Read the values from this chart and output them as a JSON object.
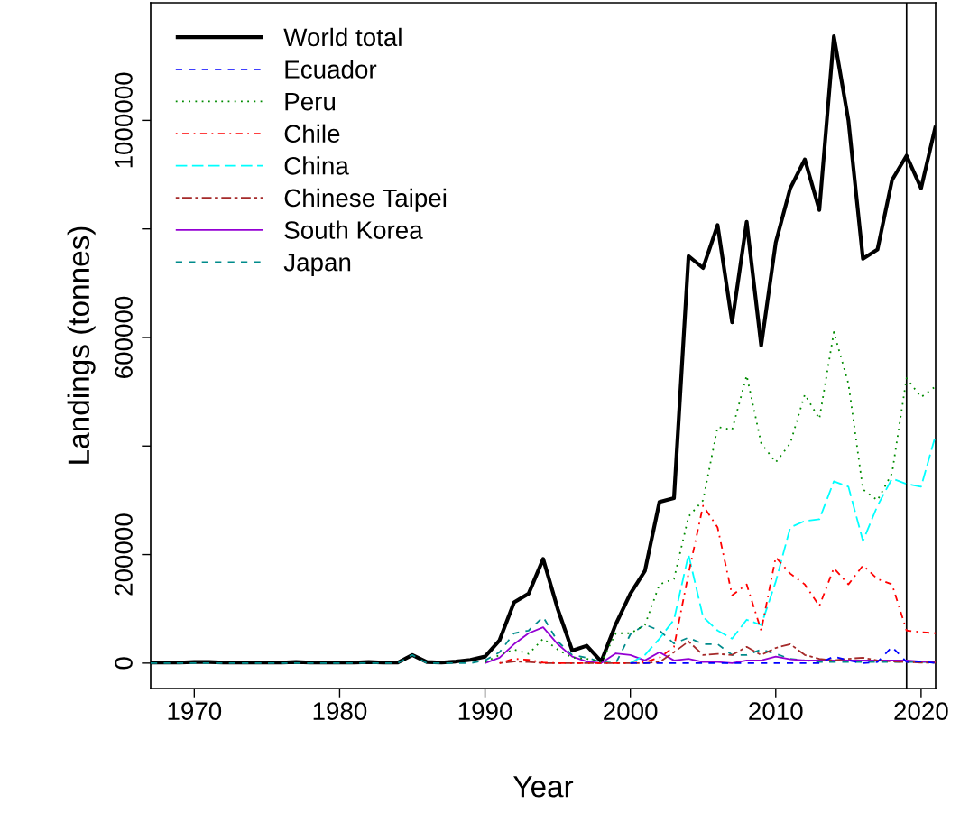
{
  "chart_data": {
    "type": "line",
    "xlabel": "Year",
    "ylabel": "Landings (tonnes)",
    "x": [
      1967,
      1968,
      1969,
      1970,
      1971,
      1972,
      1973,
      1974,
      1975,
      1976,
      1977,
      1978,
      1979,
      1980,
      1981,
      1982,
      1983,
      1984,
      1985,
      1986,
      1987,
      1988,
      1989,
      1990,
      1991,
      1992,
      1993,
      1994,
      1995,
      1996,
      1997,
      1998,
      1999,
      2000,
      2001,
      2002,
      2003,
      2004,
      2005,
      2006,
      2007,
      2008,
      2009,
      2010,
      2011,
      2012,
      2013,
      2014,
      2015,
      2016,
      2017,
      2018,
      2019,
      2020,
      2021
    ],
    "xlim": [
      1967,
      2021
    ],
    "xticks": [
      1970,
      1980,
      1990,
      2000,
      2010,
      2020
    ],
    "ylim": [
      -46800,
      1216800
    ],
    "yticks": [
      0,
      200000,
      {
        "value": 400000,
        "label": null
      },
      600000,
      {
        "value": 800000,
        "label": null
      },
      1000000
    ],
    "grid": false,
    "legend": "top left",
    "marker": "none",
    "ref_lines": [
      {
        "axis": "x",
        "value": 2019,
        "color": "#000000",
        "line_style": "solid"
      }
    ],
    "series": [
      {
        "name": "World total",
        "color": "#000000",
        "line_style": "solid",
        "values": [
          1000,
          1000,
          1000,
          2000,
          2000,
          1000,
          1000,
          1000,
          1000,
          1000,
          2000,
          1000,
          1000,
          1000,
          1000,
          2000,
          1000,
          1000,
          15000,
          2000,
          1000,
          3000,
          6000,
          12000,
          42000,
          112000,
          128000,
          192000,
          100000,
          23000,
          32000,
          3000,
          72000,
          128000,
          170000,
          297000,
          304000,
          750000,
          728000,
          807000,
          628000,
          813000,
          585000,
          775000,
          875000,
          928000,
          835000,
          1155000,
          1000000,
          745000,
          762000,
          890000,
          935000,
          875000,
          990000
        ]
      },
      {
        "name": "Ecuador",
        "color": "#0000ff",
        "line_style": "dashed",
        "values": [
          null,
          null,
          null,
          null,
          null,
          null,
          null,
          null,
          null,
          null,
          null,
          null,
          null,
          null,
          null,
          null,
          null,
          null,
          null,
          null,
          null,
          null,
          null,
          null,
          null,
          null,
          null,
          null,
          null,
          null,
          null,
          null,
          null,
          0,
          0,
          0,
          0,
          0,
          0,
          0,
          0,
          0,
          0,
          0,
          0,
          0,
          0,
          12000,
          5000,
          0,
          2000,
          30000,
          2000,
          3000,
          0
        ]
      },
      {
        "name": "Peru",
        "color": "#008b00",
        "line_style": "dotted",
        "values": [
          null,
          null,
          null,
          null,
          null,
          null,
          null,
          null,
          null,
          null,
          null,
          null,
          null,
          null,
          null,
          null,
          null,
          null,
          null,
          null,
          null,
          null,
          null,
          2000,
          15000,
          25000,
          17000,
          45000,
          25000,
          10000,
          8000,
          2000,
          55000,
          55000,
          70000,
          145000,
          155000,
          270000,
          300000,
          435000,
          430000,
          530000,
          405000,
          370000,
          405000,
          495000,
          450000,
          610000,
          515000,
          320000,
          300000,
          350000,
          525000,
          490000,
          510000
        ]
      },
      {
        "name": "Chile",
        "color": "#ff0000",
        "line_style": "dashdot",
        "values": [
          null,
          null,
          null,
          null,
          null,
          null,
          null,
          null,
          null,
          null,
          null,
          null,
          null,
          null,
          null,
          null,
          null,
          null,
          null,
          null,
          null,
          null,
          null,
          null,
          0,
          8000,
          6000,
          1000,
          0,
          0,
          0,
          0,
          0,
          0,
          2000,
          10000,
          30000,
          165000,
          290000,
          250000,
          125000,
          145000,
          60000,
          195000,
          165000,
          145000,
          105000,
          175000,
          145000,
          180000,
          155000,
          145000,
          60000,
          57000,
          55000
        ]
      },
      {
        "name": "China",
        "color": "#00ffff",
        "line_style": "longdash",
        "values": [
          null,
          null,
          null,
          null,
          null,
          null,
          null,
          null,
          null,
          null,
          null,
          null,
          null,
          null,
          null,
          null,
          null,
          null,
          null,
          null,
          null,
          null,
          null,
          null,
          null,
          null,
          null,
          null,
          null,
          null,
          null,
          null,
          null,
          0,
          15000,
          45000,
          80000,
          200000,
          85000,
          60000,
          45000,
          80000,
          70000,
          150000,
          250000,
          262000,
          265000,
          335000,
          325000,
          225000,
          290000,
          340000,
          330000,
          325000,
          420000
        ]
      },
      {
        "name": "Chinese Taipei",
        "color": "#a52a2a",
        "line_style": "twodash",
        "values": [
          null,
          null,
          null,
          null,
          null,
          null,
          null,
          null,
          null,
          null,
          null,
          null,
          null,
          null,
          null,
          null,
          null,
          null,
          null,
          null,
          null,
          null,
          null,
          null,
          0,
          3000,
          2000,
          0,
          0,
          0,
          0,
          0,
          0,
          0,
          0,
          2000,
          20000,
          40000,
          15000,
          17000,
          15000,
          30000,
          15000,
          28000,
          35000,
          15000,
          8000,
          5000,
          8000,
          10000,
          5000,
          3000,
          2000,
          1000,
          1000
        ]
      },
      {
        "name": "South Korea",
        "color": "#9400d3",
        "line_style": "solid",
        "values": [
          null,
          null,
          null,
          null,
          null,
          null,
          null,
          null,
          null,
          null,
          null,
          null,
          null,
          null,
          null,
          null,
          null,
          null,
          null,
          null,
          null,
          null,
          null,
          0,
          10000,
          35000,
          55000,
          66000,
          35000,
          12000,
          3000,
          0,
          18000,
          15000,
          5000,
          20000,
          5000,
          8000,
          2000,
          2000,
          0,
          5000,
          5000,
          12000,
          7000,
          5000,
          5000,
          5000,
          5000,
          5000,
          5000,
          5000,
          5000,
          3000,
          2000
        ]
      },
      {
        "name": "Japan",
        "color": "#008b8b",
        "line_style": "dashed",
        "values": [
          0,
          0,
          0,
          0,
          0,
          0,
          0,
          0,
          0,
          0,
          0,
          0,
          0,
          0,
          0,
          0,
          0,
          0,
          15000,
          0,
          0,
          0,
          0,
          5000,
          20000,
          55000,
          60000,
          85000,
          40000,
          15000,
          10000,
          2000,
          0,
          53000,
          71000,
          60000,
          36000,
          47000,
          35000,
          35000,
          15000,
          15000,
          25000,
          17000,
          8000,
          5000,
          2000,
          2000,
          2000,
          2000,
          2000,
          2000,
          2000,
          2000,
          2000
        ]
      }
    ]
  }
}
